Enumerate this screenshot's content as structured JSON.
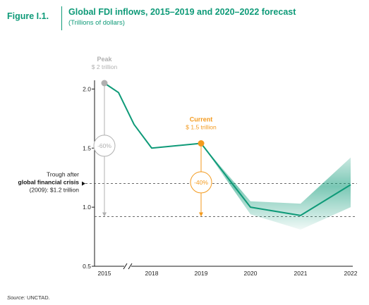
{
  "figure": {
    "label": "Figure I.1.",
    "title": "Global FDI inflows, 2015–2019 and 2020–2022 forecast",
    "subtitle": "(Trillions of dollars)",
    "source_label": "Source:",
    "source_text": "UNCTAD."
  },
  "chart_data": {
    "type": "line",
    "title": "Global FDI inflows, 2015–2019 and 2020–2022 forecast",
    "subtitle": "(Trillions of dollars)",
    "xlabel": "",
    "ylabel": "",
    "ylim": [
      0.5,
      2.05
    ],
    "y_ticks": [
      0.5,
      1.0,
      1.5,
      2.0
    ],
    "y_tick_labels": [
      "0.5",
      "1.0",
      "1.5",
      "2.0"
    ],
    "x_tick_labels": [
      "2015",
      "2018",
      "2019",
      "2020",
      "2021",
      "2022"
    ],
    "x_axis_break": "between 2015 and 2018",
    "grid": false,
    "series": [
      {
        "points": [
          {
            "x": "2015",
            "y": 2.05
          },
          {
            "x": "2016",
            "y": 1.97
          },
          {
            "x": "2017",
            "y": 1.7
          },
          {
            "x": "2018",
            "y": 1.5
          },
          {
            "x": "2019",
            "y": 1.54
          },
          {
            "x": "2020",
            "y": 1.0
          },
          {
            "x": "2021",
            "y": 0.93
          },
          {
            "x": "2022",
            "y": 1.19
          }
        ]
      }
    ],
    "forecast_band": [
      {
        "x": "2019",
        "low": 1.54,
        "high": 1.54
      },
      {
        "x": "2020",
        "low": 0.94,
        "high": 1.05
      },
      {
        "x": "2021",
        "low": 0.81,
        "high": 1.03
      },
      {
        "x": "2022",
        "low": 1.0,
        "high": 1.42
      }
    ],
    "reference_lines": [
      {
        "y": 1.2,
        "label_line1": "Trough after",
        "label_line2": "global financial crisis",
        "label_line3": "(2009): $1.2 trillion"
      },
      {
        "y": 0.92
      }
    ],
    "annotations": {
      "peak": {
        "x": "2015",
        "y": 2.05,
        "title": "Peak",
        "value": "$ 2 trillion",
        "drop_label": "-60%",
        "color": "#b0b0b0"
      },
      "current": {
        "x": "2019",
        "y": 1.54,
        "title": "Current",
        "value": "$ 1.5 trillion",
        "drop_label": "-40%",
        "color": "#f39a1e"
      }
    },
    "colors": {
      "line": "#0e9a78",
      "band": "#0e9a78",
      "title": "#0e9a78",
      "axis": "#1a1a1a",
      "dash": "#555555"
    }
  }
}
